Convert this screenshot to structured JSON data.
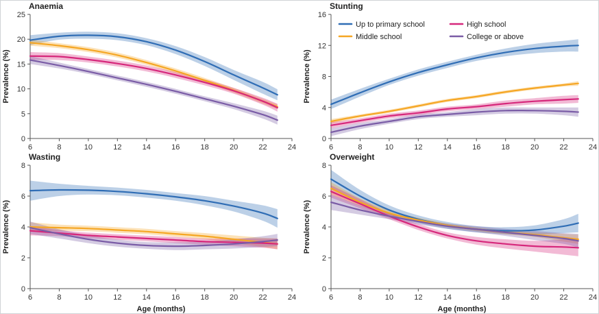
{
  "chart_data": [
    {
      "type": "line",
      "title": "Anaemia",
      "xlabel": "",
      "ylabel": "Prevalence (%)",
      "xlim": [
        6,
        24
      ],
      "ylim": [
        0,
        25
      ],
      "xticks": [
        6,
        8,
        10,
        12,
        14,
        16,
        18,
        20,
        22,
        24
      ],
      "yticks": [
        0,
        5,
        10,
        15,
        20,
        25
      ],
      "grid": false,
      "series": [
        {
          "key": "primary",
          "x": [
            6,
            8,
            10,
            12,
            14,
            16,
            18,
            20,
            22,
            23
          ],
          "values": [
            19.8,
            20.6,
            20.8,
            20.5,
            19.5,
            17.8,
            15.5,
            12.8,
            10.2,
            8.8
          ],
          "lower": [
            18.8,
            19.9,
            20.1,
            19.8,
            18.8,
            17.0,
            14.6,
            11.8,
            9.0,
            7.7
          ],
          "upper": [
            20.8,
            21.3,
            21.5,
            21.2,
            20.2,
            18.6,
            16.4,
            13.8,
            11.4,
            9.9
          ]
        },
        {
          "key": "middle",
          "x": [
            6,
            8,
            10,
            12,
            14,
            16,
            18,
            20,
            22,
            23
          ],
          "values": [
            19.3,
            18.7,
            17.9,
            16.8,
            15.3,
            13.6,
            11.7,
            9.7,
            7.5,
            6.4
          ],
          "lower": [
            18.7,
            18.2,
            17.4,
            16.3,
            14.8,
            13.1,
            11.2,
            9.2,
            7.0,
            5.9
          ],
          "upper": [
            19.9,
            19.2,
            18.4,
            17.3,
            15.8,
            14.1,
            12.2,
            10.2,
            8.0,
            6.9
          ]
        },
        {
          "key": "high",
          "x": [
            6,
            8,
            10,
            12,
            14,
            16,
            18,
            20,
            22,
            23
          ],
          "values": [
            16.6,
            16.5,
            15.9,
            15.1,
            14.1,
            12.8,
            11.3,
            9.6,
            7.5,
            6.2
          ],
          "lower": [
            15.8,
            15.8,
            15.3,
            14.5,
            13.5,
            12.2,
            10.7,
            9.0,
            6.8,
            5.4
          ],
          "upper": [
            17.4,
            17.2,
            16.5,
            15.7,
            14.7,
            13.4,
            11.9,
            10.2,
            8.2,
            7.0
          ]
        },
        {
          "key": "college",
          "x": [
            6,
            8,
            10,
            12,
            14,
            16,
            18,
            20,
            22,
            23
          ],
          "values": [
            15.8,
            14.7,
            13.5,
            12.2,
            10.9,
            9.5,
            8.0,
            6.5,
            4.8,
            3.7
          ],
          "lower": [
            15.0,
            14.1,
            13.0,
            11.7,
            10.4,
            9.0,
            7.5,
            5.9,
            4.0,
            2.8
          ],
          "upper": [
            16.6,
            15.3,
            14.0,
            12.7,
            11.4,
            10.0,
            8.5,
            7.1,
            5.6,
            4.6
          ]
        }
      ]
    },
    {
      "type": "line",
      "title": "Stunting",
      "xlabel": "",
      "ylabel": "Prevalence (%)",
      "xlim": [
        6,
        24
      ],
      "ylim": [
        0,
        16
      ],
      "xticks": [
        6,
        8,
        10,
        12,
        14,
        16,
        18,
        20,
        22,
        24
      ],
      "yticks": [
        0,
        4,
        8,
        12,
        16
      ],
      "grid": false,
      "legend_position": "top",
      "series": [
        {
          "key": "primary",
          "x": [
            6,
            8,
            10,
            12,
            14,
            16,
            18,
            20,
            22,
            23
          ],
          "values": [
            4.4,
            5.9,
            7.3,
            8.5,
            9.5,
            10.4,
            11.1,
            11.6,
            11.9,
            12.0
          ],
          "lower": [
            3.8,
            5.4,
            6.9,
            8.1,
            9.1,
            10.0,
            10.6,
            11.0,
            11.2,
            11.2
          ],
          "upper": [
            5.0,
            6.4,
            7.7,
            8.9,
            9.9,
            10.8,
            11.6,
            12.2,
            12.6,
            12.8
          ]
        },
        {
          "key": "middle",
          "x": [
            6,
            8,
            10,
            12,
            14,
            16,
            18,
            20,
            22,
            23
          ],
          "values": [
            2.2,
            2.9,
            3.5,
            4.2,
            4.9,
            5.4,
            6.0,
            6.5,
            6.9,
            7.1
          ],
          "lower": [
            1.9,
            2.7,
            3.3,
            4.0,
            4.7,
            5.2,
            5.8,
            6.3,
            6.7,
            6.8
          ],
          "upper": [
            2.5,
            3.1,
            3.7,
            4.4,
            5.1,
            5.6,
            6.2,
            6.7,
            7.1,
            7.4
          ]
        },
        {
          "key": "high",
          "x": [
            6,
            8,
            10,
            12,
            14,
            16,
            18,
            20,
            22,
            23
          ],
          "values": [
            1.7,
            2.3,
            2.9,
            3.3,
            3.8,
            4.1,
            4.5,
            4.8,
            5.0,
            5.1
          ],
          "lower": [
            1.3,
            2.0,
            2.6,
            3.0,
            3.5,
            3.8,
            4.1,
            4.4,
            4.5,
            4.6
          ],
          "upper": [
            2.1,
            2.6,
            3.2,
            3.6,
            4.1,
            4.4,
            4.9,
            5.2,
            5.5,
            5.6
          ]
        },
        {
          "key": "college",
          "x": [
            6,
            8,
            10,
            12,
            14,
            16,
            18,
            20,
            22,
            23
          ],
          "values": [
            0.8,
            1.6,
            2.2,
            2.8,
            3.1,
            3.4,
            3.6,
            3.6,
            3.5,
            3.4
          ],
          "lower": [
            0.3,
            1.2,
            1.9,
            2.5,
            2.8,
            3.0,
            3.2,
            3.2,
            3.0,
            2.8
          ],
          "upper": [
            1.3,
            2.0,
            2.5,
            3.1,
            3.4,
            3.8,
            4.0,
            4.0,
            4.0,
            4.0
          ]
        }
      ]
    },
    {
      "type": "line",
      "title": "Wasting",
      "xlabel": "Age (months)",
      "ylabel": "Prevalence (%)",
      "xlim": [
        6,
        24
      ],
      "ylim": [
        0,
        8
      ],
      "xticks": [
        6,
        8,
        10,
        12,
        14,
        16,
        18,
        20,
        22,
        24
      ],
      "yticks": [
        0,
        2,
        4,
        6,
        8
      ],
      "grid": false,
      "series": [
        {
          "key": "primary",
          "x": [
            6,
            8,
            10,
            12,
            14,
            16,
            18,
            20,
            22,
            23
          ],
          "values": [
            6.35,
            6.4,
            6.38,
            6.3,
            6.15,
            5.95,
            5.7,
            5.35,
            4.9,
            4.55
          ],
          "lower": [
            5.7,
            6.0,
            6.1,
            6.05,
            5.9,
            5.7,
            5.4,
            5.0,
            4.4,
            3.95
          ],
          "upper": [
            7.0,
            6.8,
            6.66,
            6.55,
            6.4,
            6.2,
            6.0,
            5.7,
            5.4,
            5.15
          ]
        },
        {
          "key": "middle",
          "x": [
            6,
            8,
            10,
            12,
            14,
            16,
            18,
            20,
            22,
            23
          ],
          "values": [
            4.0,
            3.95,
            3.9,
            3.8,
            3.7,
            3.55,
            3.4,
            3.2,
            3.0,
            2.9
          ],
          "lower": [
            3.7,
            3.75,
            3.72,
            3.62,
            3.52,
            3.37,
            3.2,
            2.95,
            2.7,
            2.55
          ],
          "upper": [
            4.3,
            4.15,
            4.08,
            3.98,
            3.88,
            3.73,
            3.6,
            3.45,
            3.3,
            3.25
          ]
        },
        {
          "key": "high",
          "x": [
            6,
            8,
            10,
            12,
            14,
            16,
            18,
            20,
            22,
            23
          ],
          "values": [
            3.75,
            3.6,
            3.45,
            3.35,
            3.25,
            3.15,
            3.05,
            3.0,
            2.95,
            2.9
          ],
          "lower": [
            3.45,
            3.4,
            3.27,
            3.17,
            3.07,
            2.95,
            2.85,
            2.75,
            2.65,
            2.55
          ],
          "upper": [
            4.05,
            3.8,
            3.63,
            3.53,
            3.43,
            3.35,
            3.25,
            3.25,
            3.25,
            3.25
          ]
        },
        {
          "key": "college",
          "x": [
            6,
            8,
            10,
            12,
            14,
            16,
            18,
            20,
            22,
            23
          ],
          "values": [
            3.95,
            3.55,
            3.2,
            2.95,
            2.8,
            2.75,
            2.8,
            2.9,
            3.05,
            3.15
          ],
          "lower": [
            3.55,
            3.25,
            2.95,
            2.72,
            2.58,
            2.5,
            2.55,
            2.6,
            2.7,
            2.75
          ],
          "upper": [
            4.35,
            3.85,
            3.45,
            3.18,
            3.02,
            3.0,
            3.05,
            3.2,
            3.4,
            3.55
          ]
        }
      ]
    },
    {
      "type": "line",
      "title": "Overweight",
      "xlabel": "Age (months)",
      "ylabel": "Prevalence (%)",
      "xlim": [
        6,
        24
      ],
      "ylim": [
        0,
        8
      ],
      "xticks": [
        6,
        8,
        10,
        12,
        14,
        16,
        18,
        20,
        22,
        24
      ],
      "yticks": [
        0,
        2,
        4,
        6,
        8
      ],
      "grid": false,
      "series": [
        {
          "key": "primary",
          "x": [
            6,
            8,
            10,
            12,
            14,
            16,
            18,
            20,
            22,
            23
          ],
          "values": [
            7.1,
            6.0,
            5.1,
            4.5,
            4.1,
            3.85,
            3.75,
            3.8,
            4.05,
            4.25
          ],
          "lower": [
            6.5,
            5.6,
            4.8,
            4.25,
            3.88,
            3.65,
            3.52,
            3.5,
            3.6,
            3.65
          ],
          "upper": [
            7.7,
            6.4,
            5.4,
            4.75,
            4.32,
            4.05,
            3.98,
            4.1,
            4.5,
            4.85
          ]
        },
        {
          "key": "middle",
          "x": [
            6,
            8,
            10,
            12,
            14,
            16,
            18,
            20,
            22,
            23
          ],
          "values": [
            6.5,
            5.6,
            4.9,
            4.45,
            4.1,
            3.85,
            3.65,
            3.5,
            3.3,
            3.2
          ],
          "lower": [
            6.1,
            5.35,
            4.72,
            4.3,
            3.98,
            3.73,
            3.52,
            3.35,
            3.05,
            2.9
          ],
          "upper": [
            6.9,
            5.85,
            5.08,
            4.6,
            4.22,
            3.97,
            3.78,
            3.65,
            3.55,
            3.5
          ]
        },
        {
          "key": "high",
          "x": [
            6,
            8,
            10,
            12,
            14,
            16,
            18,
            20,
            22,
            23
          ],
          "values": [
            6.3,
            5.5,
            4.7,
            4.0,
            3.45,
            3.1,
            2.9,
            2.75,
            2.7,
            2.65
          ],
          "lower": [
            5.9,
            5.2,
            4.5,
            3.8,
            3.25,
            2.85,
            2.6,
            2.4,
            2.2,
            2.1
          ],
          "upper": [
            6.7,
            5.8,
            4.9,
            4.2,
            3.65,
            3.35,
            3.2,
            3.1,
            3.2,
            3.2
          ]
        },
        {
          "key": "college",
          "x": [
            6,
            8,
            10,
            12,
            14,
            16,
            18,
            20,
            22,
            23
          ],
          "values": [
            5.6,
            5.1,
            4.7,
            4.35,
            4.05,
            3.85,
            3.65,
            3.45,
            3.25,
            3.1
          ],
          "lower": [
            5.1,
            4.8,
            4.5,
            4.17,
            3.88,
            3.65,
            3.42,
            3.15,
            2.9,
            2.65
          ],
          "upper": [
            6.1,
            5.4,
            4.9,
            4.53,
            4.22,
            4.05,
            3.88,
            3.75,
            3.6,
            3.55
          ]
        }
      ]
    }
  ],
  "legend": [
    {
      "key": "primary",
      "label": "Up to primary school"
    },
    {
      "key": "middle",
      "label": "Middle school"
    },
    {
      "key": "high",
      "label": "High school"
    },
    {
      "key": "college",
      "label": "College or above"
    }
  ],
  "colors": {
    "primary": "#2f6db5",
    "middle": "#f5a623",
    "high": "#d6277b",
    "college": "#7a5ca6",
    "axis": "#555555",
    "frame": "#cfd3d6"
  }
}
